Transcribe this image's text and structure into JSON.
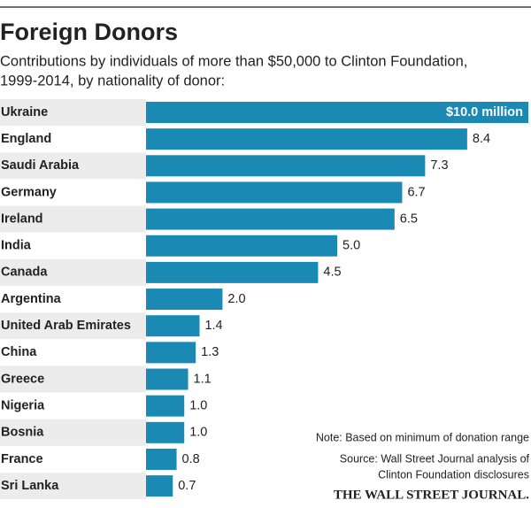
{
  "chart_data": {
    "type": "bar",
    "orientation": "horizontal",
    "title": "Foreign Donors",
    "subtitle": [
      "Contributions by individuals of more than $50,000 to Clinton Foundation,",
      "1999-2014, by nationality of donor:"
    ],
    "categories": [
      "Ukraine",
      "England",
      "Saudi Arabia",
      "Germany",
      "Ireland",
      "India",
      "Canada",
      "Argentina",
      "United Arab Emirates",
      "China",
      "Greece",
      "Nigeria",
      "Bosnia",
      "France",
      "Sri Lanka"
    ],
    "values": [
      10.0,
      8.4,
      7.3,
      6.7,
      6.5,
      5.0,
      4.5,
      2.0,
      1.4,
      1.3,
      1.1,
      1.0,
      1.0,
      0.8,
      0.7
    ],
    "value_labels": [
      "$10.0 million",
      "8.4",
      "7.3",
      "6.7",
      "6.5",
      "5.0",
      "4.5",
      "2.0",
      "1.4",
      "1.3",
      "1.1",
      "1.0",
      "1.0",
      "0.8",
      "0.7"
    ],
    "color": "#1a8ab4",
    "note": "Note: Based on minimum of donation range",
    "source": [
      "Source: Wall Street Journal analysis of",
      "Clinton Foundation disclosures"
    ],
    "credit": "THE WALL STREET JOURNAL."
  }
}
